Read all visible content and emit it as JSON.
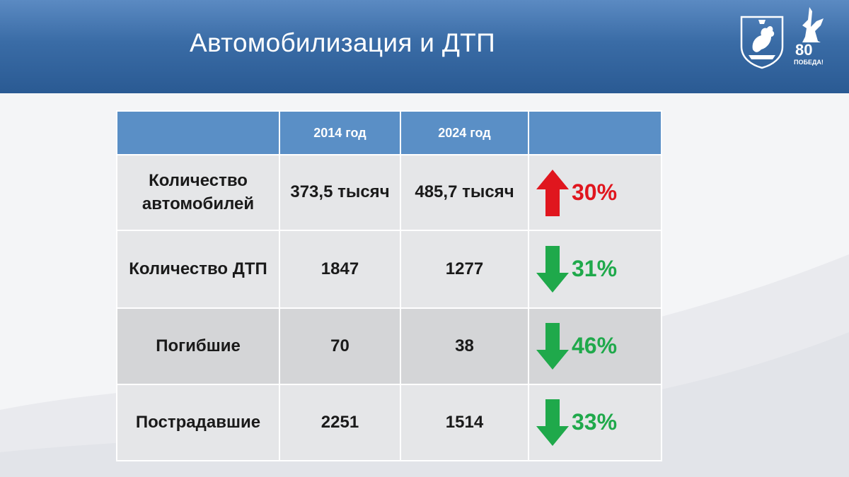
{
  "slide": {
    "title": "Автомобилизация и ДТП",
    "logos": {
      "crest_icon": "kazan-coat-of-arms",
      "victory_icon": "victory-80-emblem",
      "victory_number": "80",
      "victory_text": "ПОБЕДА!"
    },
    "colors": {
      "header": "#3a6ca6",
      "table_header": "#5a8fc6",
      "increase": "#e0161e",
      "decrease": "#1fa94b"
    }
  },
  "table": {
    "headers": [
      "",
      "2014 год",
      "2024 год",
      ""
    ],
    "rows": [
      {
        "label": "Количество автомобилей",
        "y2014": "373,5 тысяч",
        "y2024": "485,7 тысяч",
        "direction": "up",
        "change": "30%"
      },
      {
        "label": "Количество ДТП",
        "y2014": "1847",
        "y2024": "1277",
        "direction": "down",
        "change": "31%"
      },
      {
        "label": "Погибшие",
        "y2014": "70",
        "y2024": "38",
        "direction": "down",
        "change": "46%"
      },
      {
        "label": "Пострадавшие",
        "y2014": "2251",
        "y2024": "1514",
        "direction": "down",
        "change": "33%"
      }
    ]
  }
}
